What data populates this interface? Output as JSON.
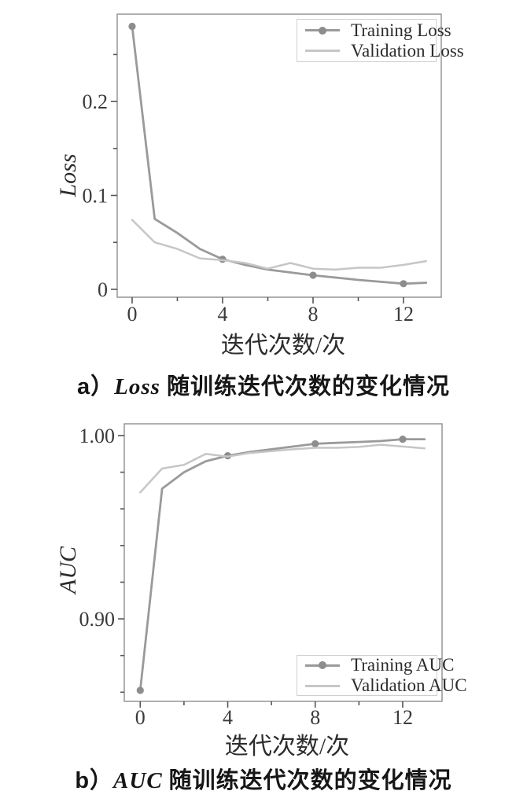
{
  "colors": {
    "training_line": "#9a9a9a",
    "validation_line": "#c6c6c6",
    "marker": "#8d8d8d",
    "spine": "#8f8f8f",
    "tick": "#555555"
  },
  "captions": [
    {
      "prefix": "a）",
      "em": "Loss",
      "rest": "随训练迭代次数的变化情况"
    },
    {
      "prefix": "b）",
      "em": "AUC",
      "rest": "随训练迭代次数的变化情况"
    }
  ],
  "chart_data": [
    {
      "id": "loss",
      "type": "line",
      "title": "a）Loss 随训练迭代次数的变化情况",
      "xlabel": "迭代次数/次",
      "ylabel": "Loss",
      "x": [
        0,
        1,
        2,
        3,
        4,
        5,
        6,
        7,
        8,
        9,
        10,
        11,
        12,
        13
      ],
      "series": [
        {
          "name": "Training Loss",
          "values": [
            0.28,
            0.075,
            0.06,
            0.043,
            0.032,
            0.026,
            0.021,
            0.018,
            0.015,
            0.0125,
            0.01,
            0.008,
            0.006,
            0.007
          ],
          "color": "#9a9a9a",
          "width": 2.8,
          "markers_at": [
            0,
            4,
            8,
            12
          ]
        },
        {
          "name": "Validation Loss",
          "values": [
            0.074,
            0.05,
            0.043,
            0.033,
            0.031,
            0.028,
            0.022,
            0.028,
            0.022,
            0.021,
            0.023,
            0.023,
            0.026,
            0.03
          ],
          "color": "#c6c6c6",
          "width": 2.5,
          "markers_at": []
        }
      ],
      "xlim": [
        -0.66,
        13.67
      ],
      "ylim": [
        -0.0084,
        0.293
      ],
      "xticks": {
        "values": [
          0,
          2,
          4,
          6,
          8,
          10,
          12
        ],
        "labels": [
          "0",
          "",
          "4",
          "",
          "8",
          "",
          "12"
        ]
      },
      "yticks": {
        "values": [
          0,
          0.05,
          0.1,
          0.15,
          0.2,
          0.25
        ],
        "labels": [
          "0",
          "",
          "0.1",
          "",
          "0.2",
          ""
        ]
      },
      "legend_position": "top-right",
      "grid": false
    },
    {
      "id": "auc",
      "type": "line",
      "title": "b）AUC 随训练迭代次数的变化情况",
      "xlabel": "迭代次数/次",
      "ylabel": "AUC",
      "x": [
        0,
        1,
        2,
        3,
        4,
        5,
        6,
        7,
        8,
        9,
        10,
        11,
        12,
        13
      ],
      "series": [
        {
          "name": "Training AUC",
          "values": [
            0.861,
            0.971,
            0.98,
            0.986,
            0.989,
            0.991,
            0.9925,
            0.994,
            0.9955,
            0.996,
            0.9965,
            0.997,
            0.998,
            0.998
          ],
          "color": "#9a9a9a",
          "width": 2.8,
          "markers_at": [
            0,
            4,
            8,
            12
          ]
        },
        {
          "name": "Validation AUC",
          "values": [
            0.969,
            0.982,
            0.984,
            0.99,
            0.9885,
            0.9905,
            0.9915,
            0.9925,
            0.9933,
            0.9933,
            0.9938,
            0.995,
            0.994,
            0.993
          ],
          "color": "#c6c6c6",
          "width": 2.5,
          "markers_at": []
        }
      ],
      "xlim": [
        -0.73,
        13.8
      ],
      "ylim": [
        0.855,
        1.0064
      ],
      "xticks": {
        "values": [
          0,
          2,
          4,
          6,
          8,
          10,
          12
        ],
        "labels": [
          "0",
          "",
          "4",
          "",
          "8",
          "",
          "12"
        ]
      },
      "yticks": {
        "values": [
          0.86,
          0.88,
          0.9,
          0.92,
          0.94,
          0.96,
          0.98,
          1.0
        ],
        "labels": [
          "",
          "",
          "0.90",
          "",
          "",
          "",
          "",
          "1.00"
        ]
      },
      "legend_position": "bottom-right",
      "grid": false
    }
  ]
}
